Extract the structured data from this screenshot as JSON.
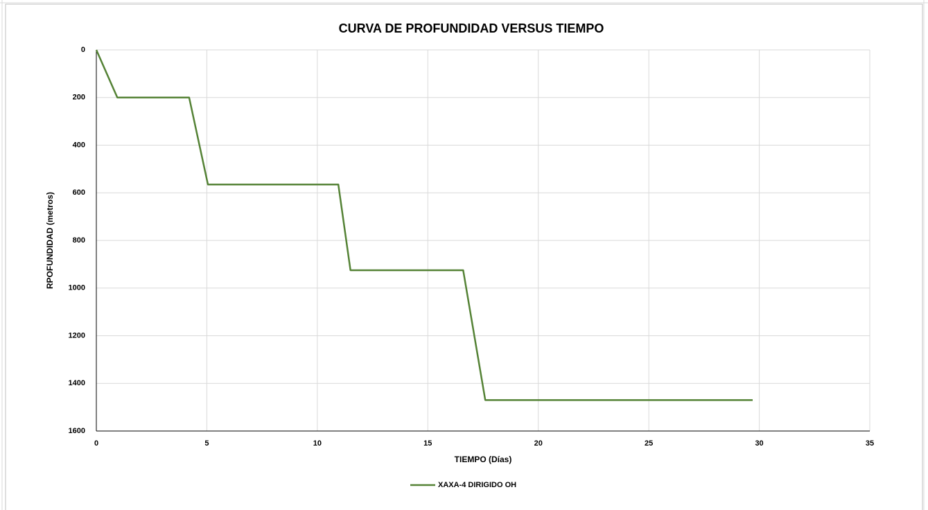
{
  "chart_data": {
    "type": "line",
    "title": "CURVA DE PROFUNDIDAD VERSUS TIEMPO",
    "x_label": "TIEMPO (Días)",
    "y_label": "RPOFUNDIDAD (metros)",
    "x": [
      0,
      0.95,
      4.2,
      5.05,
      10.95,
      11.5,
      16.6,
      17.6,
      29.7
    ],
    "series": [
      {
        "name": "XAXA-4 DIRIGIDO OH",
        "color": "#548235",
        "values": [
          0,
          200,
          200,
          565,
          565,
          925,
          925,
          1470,
          1470
        ]
      }
    ],
    "xlim": [
      0,
      35
    ],
    "xticks": [
      0,
      5,
      10,
      15,
      20,
      25,
      30,
      35
    ],
    "ylim": [
      0,
      1600
    ],
    "yticks": [
      0,
      200,
      400,
      600,
      800,
      1000,
      1200,
      1400,
      1600
    ],
    "y_inverted": true,
    "grid": true,
    "legend": "bottom"
  }
}
